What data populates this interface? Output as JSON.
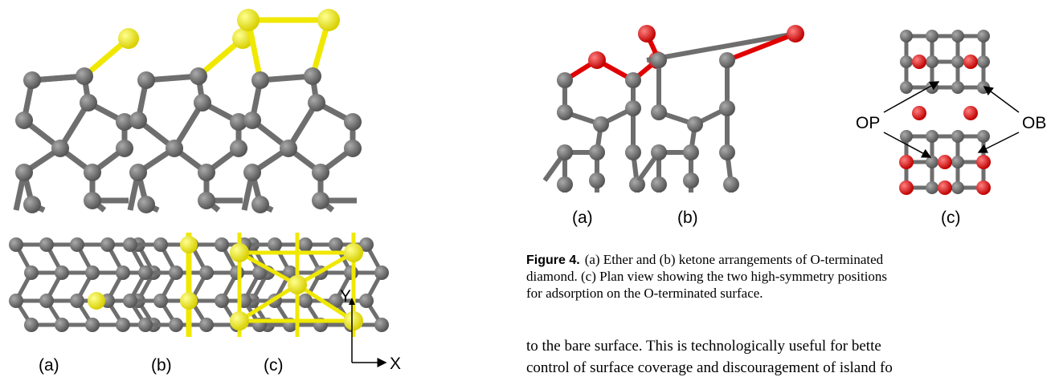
{
  "left_figure": {
    "labels": [
      "(a)",
      "(b)",
      "(c)"
    ],
    "axis_labels": {
      "y": "Y",
      "x": "X"
    }
  },
  "right_figure": {
    "labels": [
      "(a)",
      "(b)",
      "(c)"
    ],
    "annotations": {
      "op": "OP",
      "ob": "OB"
    },
    "caption": {
      "label": "Figure 4.",
      "lines": [
        "(a) Ether and (b) ketone arrangements of O-terminated",
        "diamond. (c) Plan view showing the two high-symmetry positions",
        "for adsorption on the O-terminated surface."
      ]
    }
  },
  "body_text": {
    "lines": [
      "to the bare surface. This is technologically useful for bette",
      "control of surface coverage and discouragement of island fo"
    ]
  }
}
